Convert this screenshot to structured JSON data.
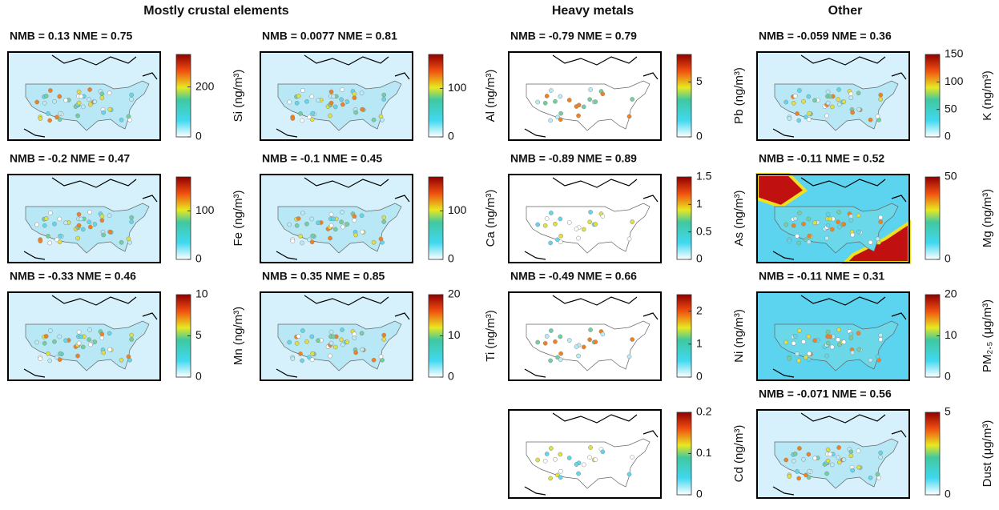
{
  "sections": [
    {
      "title": "Mostly crustal elements",
      "columns": [
        [
          {
            "title": "NMB = 0.13 NME = 0.75",
            "label": "Si (ng/m³)",
            "lim": [
              0,
              330
            ],
            "ticks": [
              0,
              200
            ]
          },
          {
            "title": "NMB = -0.2 NME = 0.47",
            "label": "Fe (ng/m³)",
            "lim": [
              0,
              170
            ],
            "ticks": [
              0,
              100
            ]
          },
          {
            "title": "NMB = -0.33 NME = 0.46",
            "label": "Mn (ng/m³)",
            "lim": [
              0,
              10
            ],
            "ticks": [
              0,
              5,
              10
            ]
          }
        ],
        [
          {
            "title": "NMB = 0.0077 NME = 0.81",
            "label": "Al (ng/m³)",
            "lim": [
              0,
              170
            ],
            "ticks": [
              0,
              100
            ]
          },
          {
            "title": "NMB = -0.1 NME = 0.45",
            "label": "Ca (ng/m³)",
            "lim": [
              0,
              170
            ],
            "ticks": [
              0,
              100
            ]
          },
          {
            "title": "NMB = 0.35 NME = 0.85",
            "label": "Ti (ng/m³)",
            "lim": [
              0,
              20
            ],
            "ticks": [
              0,
              10,
              20
            ]
          }
        ]
      ]
    },
    {
      "title": "Heavy metals",
      "columns": [
        [
          {
            "title": "NMB = -0.79 NME = 0.79",
            "label": "Pb (ng/m³)",
            "lim": [
              0,
              7.5
            ],
            "ticks": [
              0,
              5
            ]
          },
          {
            "title": "NMB = -0.89 NME = 0.89",
            "label": "As (ng/m³)",
            "lim": [
              0,
              1.5
            ],
            "ticks": [
              0,
              0.5,
              1,
              1.5
            ]
          },
          {
            "title": "NMB = -0.49 NME = 0.66",
            "label": "Ni (ng/m³)",
            "lim": [
              0,
              2.5
            ],
            "ticks": [
              0,
              1,
              2
            ]
          },
          {
            "label": "Cd (ng/m³)",
            "lim": [
              0,
              0.2
            ],
            "ticks": [
              0,
              0.1,
              0.2
            ]
          }
        ]
      ]
    },
    {
      "title": "Other",
      "columns": [
        [
          {
            "title": "NMB = -0.059 NME = 0.36",
            "label": "K (ng/m³)",
            "lim": [
              0,
              150
            ],
            "ticks": [
              0,
              50,
              100,
              150
            ]
          },
          {
            "title": "NMB = -0.11 NME = 0.52",
            "label": "Mg (ng/m³)",
            "lim": [
              0,
              50
            ],
            "ticks": [
              0,
              50
            ]
          },
          {
            "title": "NMB = -0.11 NME = 0.31",
            "label": "PM₂.₅ (μg/m³)",
            "lim": [
              0,
              20
            ],
            "ticks": [
              0,
              10,
              20
            ]
          },
          {
            "title": "NMB = -0.071 NME = 0.56",
            "label": "Dust (μg/m³)",
            "lim": [
              0,
              5
            ],
            "ticks": [
              0,
              5
            ]
          }
        ]
      ]
    }
  ]
}
